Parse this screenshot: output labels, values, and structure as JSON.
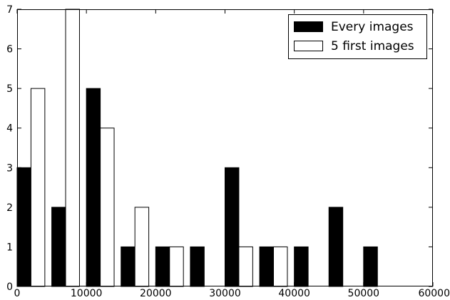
{
  "chart_data": {
    "type": "bar",
    "title": "",
    "xlabel": "",
    "ylabel": "",
    "xlim": [
      0,
      60000
    ],
    "ylim": [
      0,
      7
    ],
    "xticks": [
      "0",
      "10000",
      "20000",
      "30000",
      "40000",
      "50000",
      "60000"
    ],
    "yticks": [
      "0",
      "1",
      "2",
      "3",
      "4",
      "5",
      "6",
      "7"
    ],
    "bin_width": 5000,
    "bin_starts": [
      0,
      5000,
      10000,
      15000,
      20000,
      25000,
      30000,
      35000,
      40000,
      45000,
      50000
    ],
    "series": [
      {
        "name": "Every images",
        "color": "#000000",
        "values": [
          3,
          2,
          5,
          1,
          1,
          1,
          3,
          1,
          1,
          2,
          1
        ]
      },
      {
        "name": "5 first images",
        "color": "#ffffff",
        "values": [
          5,
          7,
          4,
          2,
          1,
          0,
          1,
          1,
          0,
          0,
          0
        ]
      }
    ],
    "legend_position": "top-right",
    "grid": false
  }
}
